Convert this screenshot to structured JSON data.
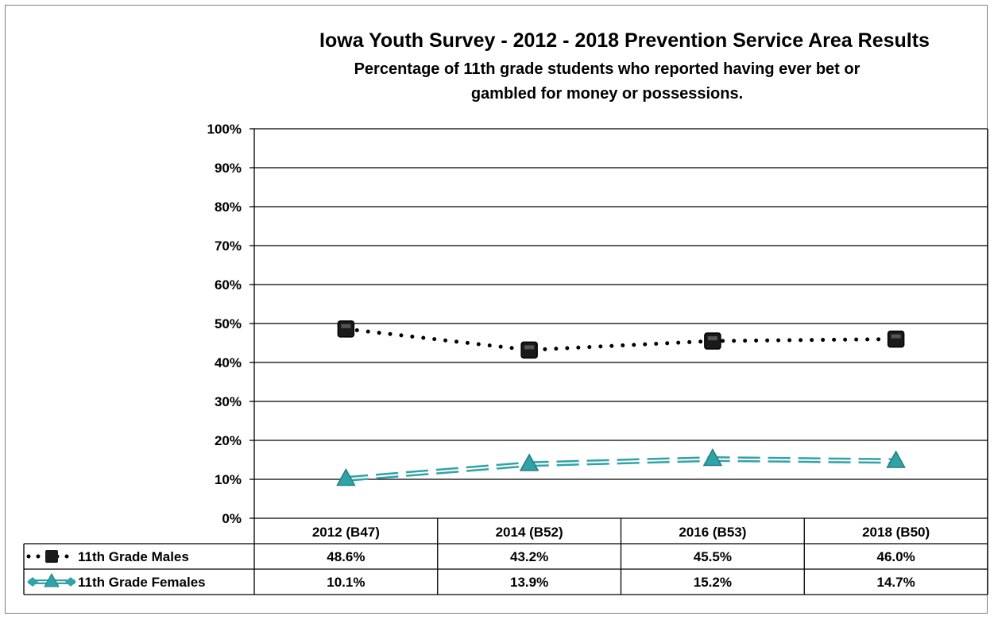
{
  "chart_data": {
    "type": "line",
    "title": "Iowa Youth Survey - 2012 - 2018 Prevention Service Area Results",
    "subtitle_lines": [
      "Percentage of 11th grade students who reported having ever bet or",
      "gambled for money or possessions."
    ],
    "categories": [
      "2012 (B47)",
      "2014 (B52)",
      "2016 (B53)",
      "2018 (B50)"
    ],
    "y_ticks": [
      "0%",
      "10%",
      "20%",
      "30%",
      "40%",
      "50%",
      "60%",
      "70%",
      "80%",
      "90%",
      "100%"
    ],
    "ylim": [
      0,
      100
    ],
    "grid": true,
    "legend": "data-table",
    "series": [
      {
        "name": "11th Grade Males",
        "values": [
          48.6,
          43.2,
          45.5,
          46.0
        ],
        "labels": [
          "48.6%",
          "43.2%",
          "45.5%",
          "46.0%"
        ],
        "color": "#000000",
        "marker": "square",
        "line_style": "dotted"
      },
      {
        "name": "11th Grade Females",
        "values": [
          10.1,
          13.9,
          15.2,
          14.7
        ],
        "labels": [
          "10.1%",
          "13.9%",
          "15.2%",
          "14.7%"
        ],
        "color": "#31a2a6",
        "marker": "triangle",
        "line_style": "double-dashed"
      }
    ]
  }
}
